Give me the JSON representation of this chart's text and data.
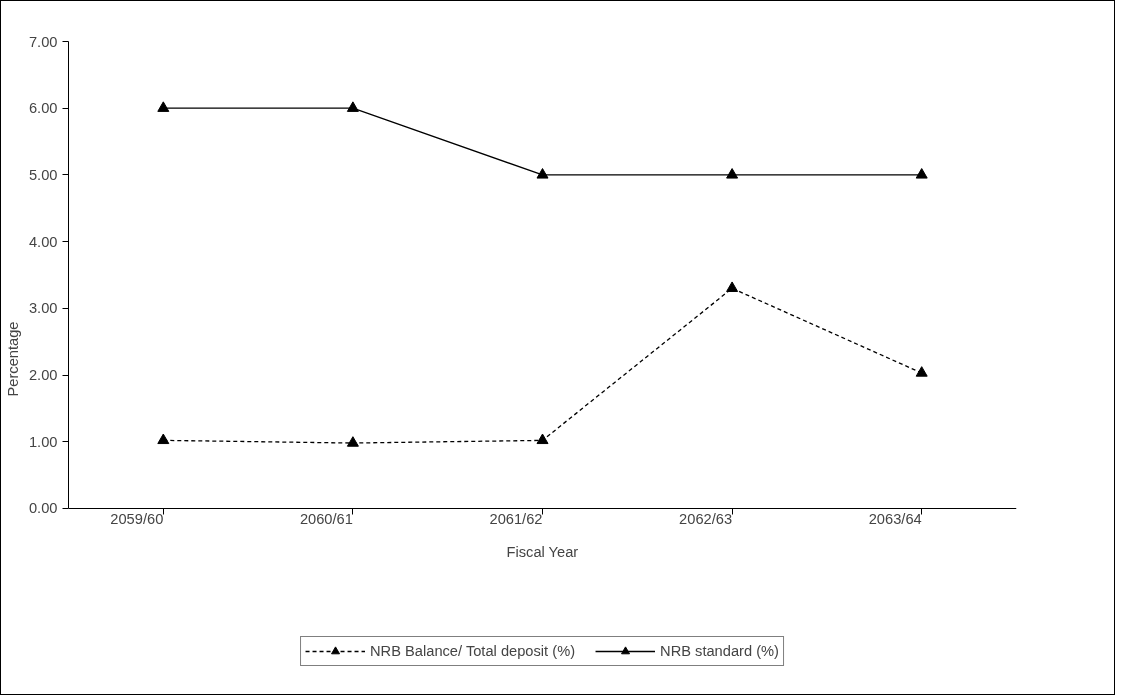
{
  "chart_data": {
    "type": "line",
    "xlabel": "Fiscal Year",
    "ylabel": "Percentage",
    "categories": [
      "2059/60",
      "2060/61",
      "2061/62",
      "2062/63",
      "2063/64"
    ],
    "series": [
      {
        "name": "NRB Balance/ Total deposit (%)",
        "color": "#000000",
        "line_style": "dashed",
        "values": [
          1.02,
          0.98,
          1.02,
          3.3,
          2.03
        ]
      },
      {
        "name": "NRB standard (%)",
        "color": "#000000",
        "line_style": "solid",
        "values": [
          6,
          6,
          5,
          5,
          5
        ]
      }
    ],
    "ylim": [
      0,
      7
    ],
    "yticks": [
      {
        "value": 0,
        "label": "0.00"
      },
      {
        "value": 1,
        "label": "1.00"
      },
      {
        "value": 2,
        "label": "2.00"
      },
      {
        "value": 3,
        "label": "3.00"
      },
      {
        "value": 4,
        "label": "4.00"
      },
      {
        "value": 5,
        "label": "5.00"
      },
      {
        "value": 6,
        "label": "6.00"
      },
      {
        "value": 7,
        "label": "7.00"
      }
    ],
    "marker": "triangle",
    "grid": false,
    "legend": "bottom"
  }
}
